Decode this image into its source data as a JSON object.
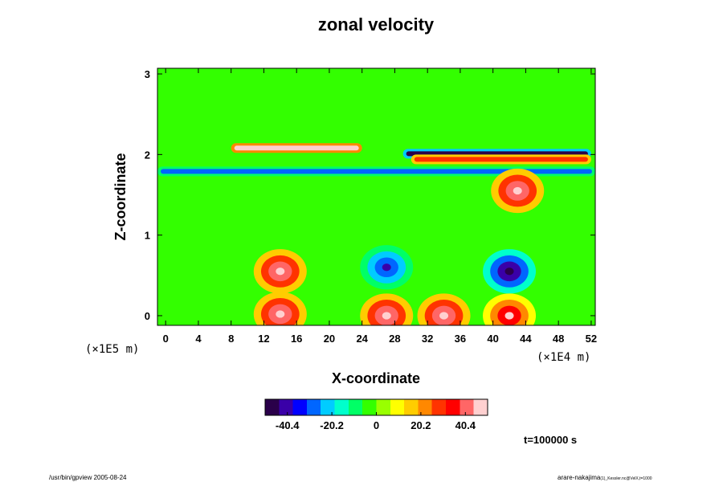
{
  "chart_data": {
    "type": "heatmap",
    "title": "zonal velocity",
    "xlabel": "X-coordinate",
    "ylabel": "Z-coordinate",
    "x_ticks": [
      "0",
      "4",
      "8",
      "12",
      "16",
      "20",
      "24",
      "28",
      "32",
      "36",
      "40",
      "44",
      "48",
      "52"
    ],
    "y_ticks": [
      "0",
      "1",
      "2",
      "3"
    ],
    "x_scale_label": "(×1E4 m)",
    "y_scale_label": "(×1E5 m)",
    "xlim": [
      -1,
      52.5
    ],
    "ylim": [
      -0.12,
      3.07
    ],
    "colorbar": {
      "ticks": [
        "-40.4",
        "-20.2",
        "0",
        "20.2",
        "40.4"
      ],
      "range": [
        -50.5,
        50.5
      ],
      "colors": [
        "#2a004a",
        "#3a00a8",
        "#0000ff",
        "#0066ff",
        "#00ccff",
        "#00ffcc",
        "#00ff66",
        "#33ff00",
        "#99ff00",
        "#ffff00",
        "#ffcc00",
        "#ff8800",
        "#ff3300",
        "#ff0000",
        "#ff6666",
        "#ffd0d0"
      ]
    },
    "time_label": "t=100000 s",
    "features": [
      {
        "kind": "jet",
        "z": 2.08,
        "x": [
          8,
          24
        ],
        "value": 45
      },
      {
        "kind": "jet",
        "z": 2.01,
        "x": [
          29,
          52
        ],
        "value": -45
      },
      {
        "kind": "jet",
        "z": 1.94,
        "x": [
          30,
          52
        ],
        "value": 30
      },
      {
        "kind": "jet",
        "z": 1.79,
        "x": [
          -1,
          52.5
        ],
        "value": -28
      },
      {
        "kind": "core",
        "x": 14,
        "z": 0.55,
        "value": 55
      },
      {
        "kind": "core",
        "x": 27,
        "z": 0.6,
        "value": -42
      },
      {
        "kind": "core",
        "x": 42,
        "z": 0.55,
        "value": -52
      },
      {
        "kind": "core",
        "x": 43,
        "z": 1.55,
        "value": 52
      },
      {
        "kind": "core",
        "x": 14,
        "z": 0.02,
        "value": 55
      },
      {
        "kind": "core",
        "x": 27,
        "z": 0.0,
        "value": 55
      },
      {
        "kind": "core",
        "x": 34,
        "z": 0.0,
        "value": 55
      },
      {
        "kind": "core",
        "x": 42,
        "z": 0.0,
        "value": 50
      }
    ]
  },
  "footer": {
    "left": "/usr/bin/gpview 2005-08-24",
    "right": "arare-nakajima",
    "right_small": "(1)_Kessler.nc@VelX,t=1000"
  }
}
